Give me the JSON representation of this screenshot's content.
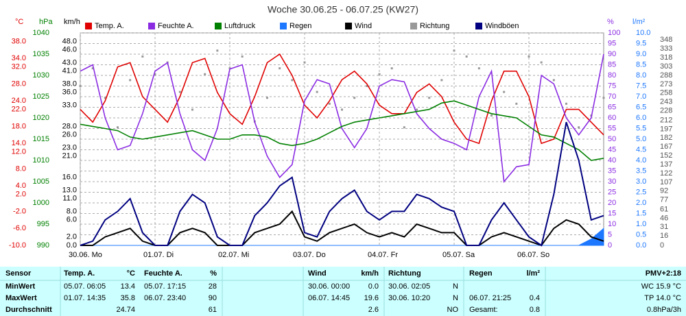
{
  "chart_data": {
    "type": "line",
    "title": "Woche 30.06.25 - 06.07.25 (KW27)",
    "x": [
      0,
      4,
      8,
      12,
      16,
      20,
      24,
      28,
      32,
      36,
      40,
      44,
      48,
      52,
      56,
      60,
      64,
      68,
      72,
      76,
      80,
      84,
      88,
      92,
      96,
      100,
      104,
      108,
      112,
      116,
      120,
      124,
      128,
      132,
      136,
      140,
      144,
      148,
      152,
      156,
      160,
      164,
      168
    ],
    "xlim": [
      0,
      168
    ],
    "xticks": [
      {
        "value": 0,
        "label": "30.06. Mo"
      },
      {
        "value": 24,
        "label": "01.07. Di"
      },
      {
        "value": 48,
        "label": "02.07. Mi"
      },
      {
        "value": 72,
        "label": "03.07. Do"
      },
      {
        "value": 96,
        "label": "04.07. Fr"
      },
      {
        "value": 120,
        "label": "05.07. Sa"
      },
      {
        "value": 144,
        "label": "06.07. So"
      }
    ],
    "axes": [
      {
        "label": "°C",
        "color": "#e00000",
        "lim": [
          -10,
          40
        ],
        "ticks": [
          {
            "value": 38,
            "label": "38.0"
          },
          {
            "value": 34,
            "label": "34.0"
          },
          {
            "value": 32,
            "label": "32.0"
          },
          {
            "value": 28,
            "label": "28.0"
          },
          {
            "value": 24,
            "label": "24.0"
          },
          {
            "value": 22,
            "label": "22.0"
          },
          {
            "value": 18,
            "label": "18.0"
          },
          {
            "value": 14,
            "label": "14.0"
          },
          {
            "value": 12,
            "label": "12.0"
          },
          {
            "value": 8,
            "label": "8.0"
          },
          {
            "value": 4,
            "label": "4.0"
          },
          {
            "value": 2,
            "label": "2.0"
          },
          {
            "value": -2,
            "label": "-2.0"
          },
          {
            "value": -6,
            "label": "-6.0"
          },
          {
            "value": -10,
            "label": "-10.0"
          }
        ]
      },
      {
        "label": "hPa",
        "color": "#008000",
        "lim": [
          990,
          1040
        ],
        "ticks": [
          1040,
          1035,
          1030,
          1025,
          1020,
          1015,
          1010,
          1005,
          1000,
          995,
          990
        ]
      },
      {
        "label": "km/h",
        "color": "#000000",
        "lim": [
          0,
          50
        ],
        "ticks": [
          {
            "value": 48,
            "label": "48.0"
          },
          {
            "value": 46,
            "label": "46.0"
          },
          {
            "value": 43,
            "label": "43.0"
          },
          {
            "value": 41,
            "label": "41.0"
          },
          {
            "value": 38,
            "label": "38.0"
          },
          {
            "value": 36,
            "label": "36.0"
          },
          {
            "value": 33,
            "label": "33.0"
          },
          {
            "value": 28,
            "label": "28.0"
          },
          {
            "value": 26,
            "label": "26.0"
          },
          {
            "value": 23,
            "label": "23.0"
          },
          {
            "value": 21,
            "label": "21.0"
          },
          {
            "value": 16,
            "label": "16.0"
          },
          {
            "value": 13,
            "label": "13.0"
          },
          {
            "value": 11,
            "label": "11.0"
          },
          {
            "value": 8,
            "label": "8.0"
          },
          {
            "value": 6,
            "label": "6.0"
          },
          {
            "value": 2,
            "label": "2.0"
          },
          {
            "value": 0,
            "label": "0.0"
          }
        ]
      },
      {
        "label": "%",
        "color": "#8a2be2",
        "lim": [
          0,
          100
        ],
        "grid": true,
        "ticks": [
          100,
          95,
          90,
          85,
          80,
          75,
          70,
          65,
          60,
          55,
          50,
          45,
          40,
          35,
          30,
          25,
          20,
          15,
          10,
          5,
          0
        ]
      },
      {
        "label": "l/m²",
        "color": "#1e78ff",
        "lim": [
          0,
          10
        ],
        "ticks": [
          {
            "value": 10,
            "label": "10.0"
          },
          {
            "value": 9.5,
            "label": "9.5"
          },
          {
            "value": 9,
            "label": "9.0"
          },
          {
            "value": 8.5,
            "label": "8.5"
          },
          {
            "value": 8,
            "label": "8.0"
          },
          {
            "value": 7.5,
            "label": "7.5"
          },
          {
            "value": 7,
            "label": "7.0"
          },
          {
            "value": 6.5,
            "label": "6.5"
          },
          {
            "value": 6,
            "label": "6.0"
          },
          {
            "value": 5.5,
            "label": "5.5"
          },
          {
            "value": 5,
            "label": "5.0"
          },
          {
            "value": 4.5,
            "label": "4.5"
          },
          {
            "value": 4,
            "label": "4.0"
          },
          {
            "value": 3.5,
            "label": "3.5"
          },
          {
            "value": 3,
            "label": "3.0"
          },
          {
            "value": 2.5,
            "label": "2.5"
          },
          {
            "value": 2,
            "label": "2.0"
          },
          {
            "value": 1.5,
            "label": "1.5"
          },
          {
            "value": 1,
            "label": "1.0"
          },
          {
            "value": 0.5,
            "label": "0.5"
          },
          {
            "value": 0,
            "label": "0.0"
          }
        ]
      },
      {
        "color": "#555555",
        "lim": [
          0,
          360
        ],
        "ticks": [
          348,
          333,
          318,
          303,
          288,
          273,
          258,
          243,
          228,
          212,
          197,
          182,
          167,
          152,
          137,
          122,
          107,
          92,
          77,
          61,
          46,
          31,
          16,
          0
        ]
      }
    ],
    "series": [
      {
        "name": "Temp. A.",
        "color": "#e00000",
        "axis": 0,
        "type": "line",
        "values": [
          22,
          19,
          24,
          32,
          33,
          25,
          22,
          19,
          25,
          33,
          34,
          26,
          21,
          18.5,
          25,
          33,
          35,
          30,
          23,
          20,
          24,
          29,
          31,
          28,
          23,
          21,
          21,
          26,
          28,
          25,
          19,
          15,
          14,
          24,
          31,
          31,
          25,
          14,
          15,
          22,
          22,
          19,
          16
        ]
      },
      {
        "name": "Feuchte A.",
        "color": "#8a2be2",
        "axis": 3,
        "type": "line",
        "values": [
          82,
          85,
          60,
          45,
          47,
          62,
          82,
          86,
          62,
          45,
          40,
          55,
          83,
          85,
          58,
          42,
          32,
          38,
          68,
          78,
          76,
          55,
          46,
          55,
          75,
          78,
          77,
          62,
          55,
          50,
          48,
          45,
          70,
          82,
          30,
          37,
          38,
          80,
          76,
          60,
          52,
          60,
          90
        ]
      },
      {
        "name": "Luftdruck",
        "color": "#008000",
        "axis": 1,
        "type": "line",
        "values": [
          1018.5,
          1018,
          1017.5,
          1017,
          1015.5,
          1015,
          1015.5,
          1016,
          1016.5,
          1017,
          1016,
          1015,
          1015,
          1016,
          1016,
          1015.5,
          1014,
          1013.5,
          1014,
          1015,
          1016.5,
          1018,
          1019,
          1019.5,
          1020,
          1020.5,
          1021,
          1021.5,
          1022,
          1023.5,
          1024,
          1023,
          1022,
          1021,
          1020.5,
          1020,
          1018,
          1016,
          1015.5,
          1014,
          1012.5,
          1010,
          1010.5
        ]
      },
      {
        "name": "Regen",
        "color": "#1e78ff",
        "axis": 4,
        "type": "area",
        "values": [
          0,
          0,
          0,
          0,
          0,
          0,
          0,
          0,
          0,
          0,
          0,
          0,
          0,
          0,
          0,
          0,
          0,
          0,
          0,
          0,
          0,
          0,
          0,
          0,
          0,
          0,
          0,
          0,
          0,
          0,
          0,
          0,
          0,
          0,
          0,
          0,
          0,
          0,
          0,
          0,
          0,
          0.3,
          0.8
        ]
      },
      {
        "name": "Wind",
        "color": "#000000",
        "axis": 2,
        "type": "line",
        "values": [
          0,
          0,
          2,
          3,
          4,
          1,
          0,
          0,
          3,
          4,
          3,
          0,
          0,
          0,
          3,
          4,
          5,
          8,
          2,
          1,
          3,
          4,
          5,
          3,
          2,
          3,
          2,
          5,
          4,
          3,
          3,
          0,
          0,
          2,
          3,
          2,
          1,
          0,
          4,
          6,
          5,
          2,
          1
        ]
      },
      {
        "name": "Richtung",
        "color": "#999999",
        "axis": 5,
        "type": "scatter",
        "values": [
          270,
          300,
          250,
          200,
          280,
          320,
          290,
          310,
          260,
          230,
          290,
          330,
          300,
          320,
          210,
          250,
          300,
          280,
          310,
          260,
          240,
          230,
          250,
          270,
          290,
          300,
          200,
          230,
          250,
          280,
          330,
          320,
          300,
          220,
          260,
          240,
          320,
          310,
          280,
          240,
          200,
          220,
          250
        ]
      },
      {
        "name": "Windböen",
        "color": "#000080",
        "axis": 2,
        "type": "line",
        "values": [
          0,
          1,
          6,
          8,
          11,
          3,
          0,
          0,
          8,
          12,
          10,
          2,
          0,
          0,
          7,
          10,
          14,
          16,
          3,
          2,
          8,
          11,
          13,
          8,
          6,
          8,
          8,
          12,
          11,
          9,
          8,
          0,
          0,
          6,
          10,
          6,
          2,
          0,
          12,
          29,
          20,
          6,
          7
        ]
      }
    ]
  },
  "table": {
    "rows": [
      [
        "Sensor",
        "Temp. A.",
        "°C",
        "Feuchte A.",
        "%",
        "Wind",
        "km/h",
        "Richtung",
        null,
        "Regen",
        "l/m²",
        "PMV+2:18"
      ],
      [
        "MinWert",
        "05.07.  06:05",
        "13.4",
        "05.07.  17:15",
        "28",
        "30.06.  00:00",
        "0.0",
        "30.06.  02:05",
        "N",
        null,
        null,
        "WC 15.9 °C"
      ],
      [
        "MaxWert",
        "01.07.  14:35",
        "35.8",
        "06.07.  23:40",
        "90",
        "06.07.  14:45",
        "19.6",
        "30.06.  10:20",
        "N",
        "06.07.  21:25",
        "0.4",
        "TP 14.0 °C"
      ],
      [
        "Durchschnitt",
        null,
        "24.74",
        null,
        "61",
        null,
        "2.6",
        null,
        "NO",
        "Gesamt:",
        "0.8",
        "0.8hPa/3h"
      ]
    ]
  }
}
